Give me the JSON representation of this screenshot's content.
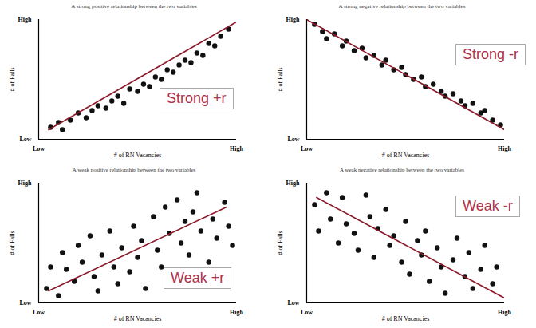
{
  "chart_data": [
    {
      "type": "scatter",
      "title": "A strong positive relationship between the two variables",
      "annotation": "Strong +r",
      "xlabel": "# of RN Vacancies",
      "ylabel": "# of Falls",
      "color": "#111111",
      "x": [
        6,
        10,
        12,
        16,
        20,
        24,
        27,
        30,
        34,
        37,
        40,
        43,
        46,
        50,
        53,
        56,
        59,
        62,
        65,
        68,
        71,
        74,
        77,
        80,
        83,
        86,
        89,
        92,
        96
      ],
      "values": [
        10,
        14,
        8,
        16,
        22,
        18,
        24,
        28,
        26,
        32,
        36,
        30,
        42,
        40,
        46,
        44,
        52,
        50,
        58,
        56,
        62,
        66,
        64,
        72,
        70,
        80,
        78,
        86,
        92
      ],
      "trendline": {
        "x": [
          5,
          100
        ],
        "y": [
          8,
          98
        ],
        "color": "#8b1a2b"
      },
      "xlim": [
        0,
        100
      ],
      "ylim": [
        0,
        100
      ],
      "xticks": [
        {
          "value": 0,
          "label": "Low"
        },
        {
          "value": 100,
          "label": "High"
        }
      ],
      "yticks": [
        {
          "value": 0,
          "label": "Low"
        },
        {
          "value": 100,
          "label": "High"
        }
      ]
    },
    {
      "type": "scatter",
      "title": "A strong negative relationship between the two variables",
      "annotation": "Strong -r",
      "xlabel": "# of RN Vacancies",
      "ylabel": "# of Falls",
      "color": "#111111",
      "x": [
        4,
        8,
        10,
        14,
        18,
        20,
        24,
        28,
        30,
        34,
        38,
        40,
        44,
        48,
        50,
        54,
        58,
        60,
        64,
        68,
        70,
        74,
        78,
        80,
        84,
        88,
        90,
        94,
        98
      ],
      "values": [
        96,
        90,
        84,
        88,
        78,
        82,
        74,
        76,
        68,
        70,
        62,
        66,
        58,
        60,
        54,
        50,
        52,
        44,
        46,
        40,
        36,
        38,
        32,
        28,
        30,
        22,
        24,
        16,
        12
      ],
      "trendline": {
        "x": [
          0,
          100
        ],
        "y": [
          100,
          8
        ],
        "color": "#8b1a2b"
      },
      "xlim": [
        0,
        100
      ],
      "ylim": [
        0,
        100
      ],
      "xticks": [
        {
          "value": 0,
          "label": "Low"
        },
        {
          "value": 100,
          "label": "High"
        }
      ],
      "yticks": [
        {
          "value": 0,
          "label": "Low"
        },
        {
          "value": 100,
          "label": "High"
        }
      ]
    },
    {
      "type": "scatter",
      "title": "A weak positive relationship between the two variables",
      "annotation": "Weak +r",
      "xlabel": "# of RN Vacancies",
      "ylabel": "# of Falls",
      "color": "#111111",
      "x": [
        4,
        6,
        10,
        12,
        14,
        18,
        20,
        22,
        26,
        28,
        30,
        32,
        36,
        38,
        40,
        42,
        46,
        48,
        50,
        52,
        54,
        58,
        60,
        62,
        64,
        66,
        68,
        70,
        72,
        74,
        76,
        78,
        80,
        82,
        86,
        88,
        90,
        94,
        96,
        98
      ],
      "values": [
        12,
        30,
        6,
        42,
        28,
        18,
        48,
        34,
        56,
        22,
        10,
        40,
        60,
        30,
        16,
        46,
        26,
        64,
        38,
        52,
        12,
        72,
        44,
        30,
        80,
        58,
        22,
        86,
        50,
        68,
        40,
        76,
        92,
        60,
        34,
        70,
        54,
        84,
        64,
        48
      ],
      "trendline": {
        "x": [
          5,
          95
        ],
        "y": [
          10,
          80
        ],
        "color": "#8b1a2b"
      },
      "xlim": [
        0,
        100
      ],
      "ylim": [
        0,
        100
      ],
      "xticks": [
        {
          "value": 0,
          "label": "Low"
        },
        {
          "value": 100,
          "label": "High"
        }
      ],
      "yticks": [
        {
          "value": 0,
          "label": "Low"
        },
        {
          "value": 100,
          "label": "High"
        }
      ]
    },
    {
      "type": "scatter",
      "title": "A weak negative relationship between the two variables",
      "annotation": "Weak -r",
      "xlabel": "# of RN Vacancies",
      "ylabel": "# of Falls",
      "color": "#111111",
      "x": [
        4,
        6,
        10,
        12,
        16,
        18,
        20,
        24,
        26,
        30,
        32,
        34,
        36,
        40,
        42,
        44,
        48,
        50,
        52,
        56,
        58,
        60,
        62,
        66,
        68,
        70,
        74,
        76,
        80,
        82,
        84,
        88,
        90,
        94,
        96
      ],
      "values": [
        82,
        60,
        92,
        70,
        50,
        88,
        66,
        58,
        44,
        90,
        72,
        38,
        62,
        78,
        48,
        56,
        34,
        68,
        24,
        52,
        40,
        60,
        18,
        46,
        30,
        8,
        36,
        54,
        22,
        42,
        12,
        28,
        48,
        16,
        30
      ],
      "trendline": {
        "x": [
          5,
          100
        ],
        "y": [
          88,
          4
        ],
        "color": "#8b1a2b"
      },
      "xlim": [
        0,
        100
      ],
      "ylim": [
        0,
        100
      ],
      "xticks": [
        {
          "value": 0,
          "label": "Low"
        },
        {
          "value": 100,
          "label": "High"
        }
      ],
      "yticks": [
        {
          "value": 0,
          "label": "Low"
        },
        {
          "value": 100,
          "label": "High"
        }
      ]
    }
  ]
}
